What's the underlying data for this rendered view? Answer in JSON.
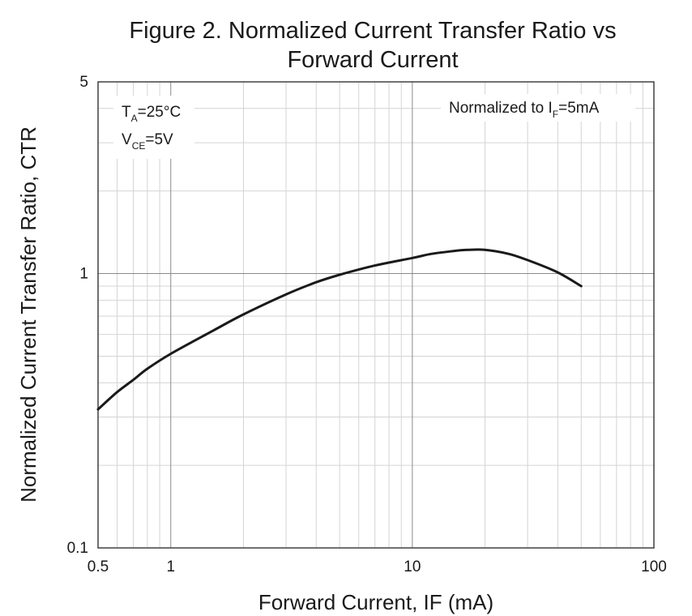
{
  "chart_data": {
    "type": "line",
    "title": [
      "Figure 2. Normalized Current Transfer Ratio vs",
      "Forward Current"
    ],
    "xlabel": "Forward Current, IF (mA)",
    "ylabel": "Normalized Current Transfer Ratio, CTR",
    "xscale": "log",
    "yscale": "log",
    "xlim": [
      0.5,
      100
    ],
    "ylim": [
      0.1,
      5
    ],
    "xticks": [
      {
        "value": 0.5,
        "label": "0.5"
      },
      {
        "value": 1,
        "label": "1"
      },
      {
        "value": 10,
        "label": "10"
      },
      {
        "value": 100,
        "label": "100"
      }
    ],
    "yticks": [
      {
        "value": 0.1,
        "label": "0.1"
      },
      {
        "value": 1,
        "label": "1"
      },
      {
        "value": 5,
        "label": "5"
      }
    ],
    "grid": true,
    "annotations": {
      "conditions": [
        {
          "main": "T",
          "sub": "A",
          "rest": "=25°C"
        },
        {
          "main": "V",
          "sub": "CE",
          "rest": "=5V"
        }
      ],
      "normalization": {
        "main": "Normalized to I",
        "sub": "F",
        "rest": "=5mA"
      }
    },
    "series": [
      {
        "x": [
          0.5,
          0.6,
          0.7,
          0.8,
          1,
          1.5,
          2,
          3,
          4,
          5,
          7,
          10,
          12,
          15,
          17,
          20,
          25,
          30,
          40,
          50
        ],
        "y": [
          0.32,
          0.37,
          0.41,
          0.45,
          0.51,
          0.62,
          0.71,
          0.84,
          0.93,
          0.99,
          1.07,
          1.14,
          1.18,
          1.21,
          1.22,
          1.22,
          1.18,
          1.12,
          1.01,
          0.9
        ]
      }
    ],
    "colors": {
      "line": "#1a1a1a",
      "grid_minor": "#d4d4d4",
      "grid_major": "#8a8a8a",
      "frame": "#333333"
    }
  }
}
